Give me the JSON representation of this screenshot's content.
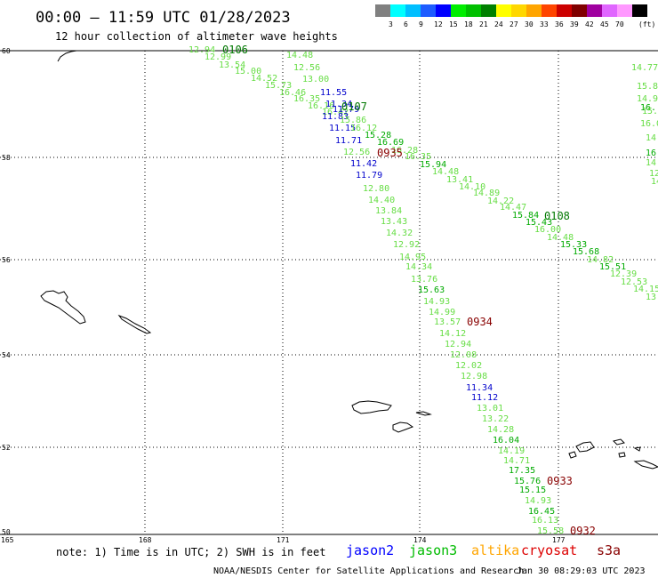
{
  "header": {
    "title": "00:00 – 11:59 UTC 01/28/2023",
    "subtitle": "12 hour collection of altimeter wave heights"
  },
  "colorbar": {
    "unit": "(ft)",
    "bins": [
      {
        "label": "",
        "color": "#808080"
      },
      {
        "label": "3",
        "color": "#00ffff"
      },
      {
        "label": "6",
        "color": "#00bfff"
      },
      {
        "label": "9",
        "color": "#1e5cff"
      },
      {
        "label": "12",
        "color": "#0000ff"
      },
      {
        "label": "15",
        "color": "#00ee00"
      },
      {
        "label": "18",
        "color": "#00c000"
      },
      {
        "label": "21",
        "color": "#008000"
      },
      {
        "label": "24",
        "color": "#ffff00"
      },
      {
        "label": "27",
        "color": "#ffd700"
      },
      {
        "label": "30",
        "color": "#ffa500"
      },
      {
        "label": "33",
        "color": "#ff4500"
      },
      {
        "label": "36",
        "color": "#cc0000"
      },
      {
        "label": "39",
        "color": "#800000"
      },
      {
        "label": "42",
        "color": "#a000a0"
      },
      {
        "label": "45",
        "color": "#e066ff"
      },
      {
        "label": "70",
        "color": "#ff99ff"
      },
      {
        "label": "",
        "color": "#000000"
      }
    ]
  },
  "map": {
    "lat_labels": [
      "60",
      "58",
      "56",
      "54",
      "52",
      "50"
    ],
    "lon_labels": [
      "165",
      "168",
      "171",
      "174",
      "177"
    ]
  },
  "colors": {
    "light_green": "#66dd44",
    "green": "#00aa00",
    "dark_green": "#007700",
    "blue": "#0000cc",
    "dark_red": "#880000",
    "legend_jason2": "#0000ff",
    "legend_jason3": "#00bb00",
    "legend_altika": "#ffa500",
    "legend_cryosat": "#dd0000",
    "legend_s3a": "#880000"
  },
  "swh_values": [
    "12.94",
    "12.99",
    "13.54",
    "15.00",
    "14.52",
    "15.73",
    "16.46",
    "16.35",
    "16.16",
    "16.42",
    "14.48",
    "12.56",
    "13.00",
    "11.55",
    "11.34",
    "11.79",
    "11.83",
    "15.86",
    "11.15",
    "16.12",
    "15.28",
    "11.71",
    "16.69",
    "16.28",
    "12.56",
    "11.42",
    "11.79",
    "16.35",
    "15.94",
    "14.48",
    "13.41",
    "14.10",
    "14.89",
    "14.22",
    "14.47",
    "15.84",
    "15.43",
    "16.00",
    "14.48",
    "15.33",
    "15.68",
    "14.82",
    "15.51",
    "12.39",
    "12.53",
    "14.15",
    "13.",
    "12.80",
    "14.40",
    "13.84",
    "13.43",
    "14.32",
    "12.92",
    "14.95",
    "14.34",
    "13.76",
    "15.63",
    "14.93",
    "14.99",
    "13.57",
    "14.12",
    "12.94",
    "12.08",
    "12.02",
    "12.98",
    "11.34",
    "11.12",
    "13.01",
    "13.22",
    "14.28",
    "16.04",
    "14.19",
    "14.71",
    "17.35",
    "15.76",
    "15.15",
    "14.93",
    "16.45",
    "16.13",
    "15.58",
    "14.77",
    "15.85",
    "14.9",
    "16.",
    "15.",
    "16.0",
    "14.",
    "16.",
    "14.",
    "12.",
    "14."
  ],
  "time_labels": [
    "0106",
    "0107",
    "0935",
    "0108",
    "0934",
    "0933",
    "0932"
  ],
  "note": "note: 1) Time is in UTC; 2) SWH is in feet",
  "legend": {
    "jason2": "jason2",
    "jason3": "jason3",
    "altika": "altika",
    "cryosat": "cryosat",
    "s3a": "s3a"
  },
  "footer": {
    "credit": "NOAA/NESDIS Center for Satellite Applications and Research",
    "timestamp": "Jan 30 08:29:03 UTC 2023"
  }
}
